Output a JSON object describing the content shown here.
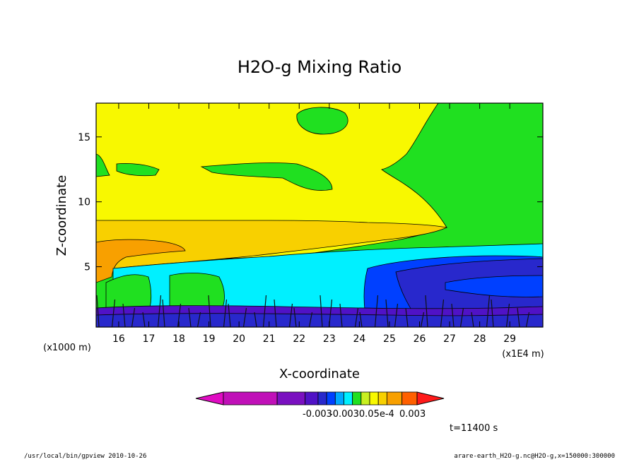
{
  "chart_data": {
    "type": "contour",
    "title": "H2O-g Mixing Ratio",
    "xlabel": "X-coordinate",
    "ylabel": "Z-coordinate",
    "x_unit_label": "(x1E4 m)",
    "y_unit_label": "(x1000 m)",
    "xlim": [
      15.25,
      30.1
    ],
    "ylim": [
      0.35,
      17.6
    ],
    "x_ticks": [
      16,
      17,
      18,
      19,
      20,
      21,
      22,
      23,
      24,
      25,
      26,
      27,
      28,
      29
    ],
    "y_ticks": [
      5,
      10,
      15
    ],
    "colorbar": {
      "colors": [
        "#e00cc3",
        "#c010b8",
        "#7a10c0",
        "#5012c6",
        "#2828cc",
        "#0040ff",
        "#00a8ff",
        "#00f0ff",
        "#20e020",
        "#c8f020",
        "#f8f800",
        "#f8d000",
        "#f8a000",
        "#ff6000",
        "#ff1a1a"
      ],
      "labels": [
        "-0.003",
        "0.003"
      ],
      "overlapping_labels": "-0.0030.05e-4"
    },
    "regions": [
      {
        "name": "upper-green",
        "fill": "#20e020"
      },
      {
        "name": "yellow-band",
        "fill": "#f8f800"
      },
      {
        "name": "gold-layer",
        "fill": "#f8d000"
      },
      {
        "name": "orange-core",
        "fill": "#f8a000"
      },
      {
        "name": "cyan-layer",
        "fill": "#00f0ff"
      },
      {
        "name": "blue-zone",
        "fill": "#0040ff"
      },
      {
        "name": "dark-blue-zone",
        "fill": "#2828cc"
      },
      {
        "name": "purple-base",
        "fill": "#5012c6"
      }
    ]
  },
  "annotation": {
    "time": "t=11400 s"
  },
  "footer": {
    "left": "/usr/local/bin/gpview  2010-10-26",
    "right": "arare-earth_H2O-g.nc@H2O-g,x=150000:300000"
  }
}
